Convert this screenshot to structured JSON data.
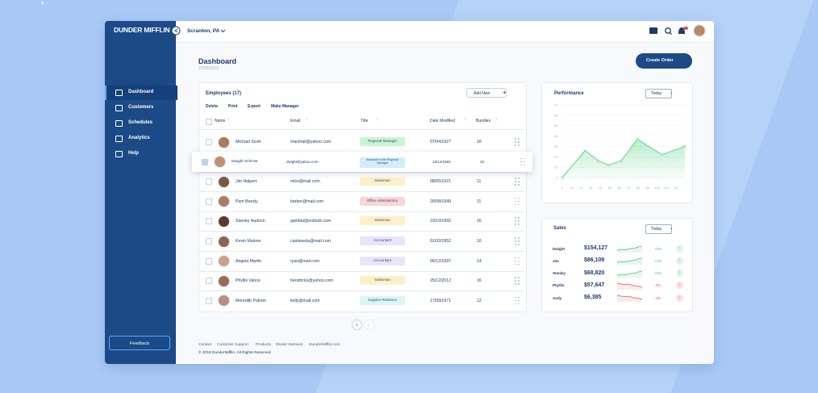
{
  "brand": "DUNDER MIFFLIN",
  "location": "Scranton, PA",
  "nav": [
    "Dashboard",
    "Customers",
    "Schedules",
    "Analytics",
    "Help"
  ],
  "active_nav": 0,
  "feedback": "Feedback",
  "page": {
    "title": "Dashboard",
    "date": "22/05/2019",
    "create_button": "Create Order"
  },
  "employees": {
    "title": "Employees (17)",
    "add_button": "Add New",
    "actions": [
      "Delete",
      "Print",
      "Export",
      "Make Manager"
    ],
    "columns": [
      "Name",
      "Email",
      "Title",
      "Date Modified",
      "Bundles"
    ],
    "rows": [
      {
        "name": "Michael Scott",
        "email": "marshall@yahoo.com",
        "title": "Regional Manager",
        "date": "07/04/1927",
        "bundles": 16,
        "tag_color": "#c9f5d3"
      },
      {
        "name": "Dwight Schrute",
        "email": "dwight@yahoo.com",
        "title": "Assistant to the Regional Manager",
        "date": "19/12/1983",
        "bundles": 15,
        "tag_color": "#d3ecfb",
        "selected": true
      },
      {
        "name": "Jim Halpert",
        "email": "mlss@mail.com",
        "title": "Salesman",
        "date": "08/05/1921",
        "bundles": 11,
        "tag_color": "#fdefc8"
      },
      {
        "name": "Pam Beesly",
        "email": "barber@mail.com",
        "title": "Office Administrator",
        "date": "26/08/1949",
        "bundles": 11,
        "tag_color": "#fbd5d5"
      },
      {
        "name": "Stanley Hudson",
        "email": "gambia@outlook.com",
        "title": "Salesman",
        "date": "19/10/1992",
        "bundles": 16,
        "tag_color": "#fdefc8"
      },
      {
        "name": "Kevin Malone",
        "email": "castaneda@mail.com",
        "title": "Accountant",
        "date": "01/02/1952",
        "bundles": 16,
        "tag_color": "#ebe3fa"
      },
      {
        "name": "Angela Martin",
        "email": "ryan@mail.com",
        "title": "Accountant",
        "date": "06/12/1997",
        "bundles": 14,
        "tag_color": "#ebe3fa"
      },
      {
        "name": "Phyllis Vance",
        "email": "hendricks@yahoo.com",
        "title": "Salesman",
        "date": "25/12/2012",
        "bundles": 16,
        "tag_color": "#fdefc8"
      },
      {
        "name": "Meredith Palmer",
        "email": "kelly@mail.com",
        "title": "Supplier Relations",
        "date": "17/09/1971",
        "bundles": 12,
        "tag_color": "#dcf6f8"
      }
    ],
    "pages": [
      "1",
      "2"
    ]
  },
  "footer": {
    "links": [
      "Contact",
      "Customer Support",
      "Products",
      "Dealer Extranet",
      "DunderMifflin.com"
    ],
    "copyright": "© 2019 DunderMifflin. All Rights Reserved"
  },
  "performance": {
    "title": "Performance",
    "filter": "Today",
    "chart": {
      "type": "area",
      "x": [
        0,
        24,
        38,
        49,
        62,
        79,
        105,
        129
      ],
      "values": [
        0,
        26,
        16,
        12,
        16,
        37,
        22,
        30
      ],
      "xlim": [
        0,
        130
      ],
      "ylim": [
        0,
        70
      ],
      "xticks": [
        0,
        10,
        20,
        30,
        40,
        50,
        60,
        70,
        80,
        90,
        100,
        110,
        120
      ],
      "yticks": [
        0,
        10,
        20,
        30,
        40,
        50,
        60,
        70
      ],
      "color": "#5fd68a",
      "grid": true
    }
  },
  "sales": {
    "title": "Sales",
    "filter": "Today",
    "rows": [
      {
        "name": "Dwight",
        "amount": "$154,127",
        "change": "+2%",
        "trend": "up"
      },
      {
        "name": "Jim",
        "amount": "$86,109",
        "change": "+1%",
        "trend": "up"
      },
      {
        "name": "Stanley",
        "amount": "$68,820",
        "change": "+2%",
        "trend": "up"
      },
      {
        "name": "Phyllis",
        "amount": "$57,647",
        "change": "-4%",
        "trend": "down"
      },
      {
        "name": "Andy",
        "amount": "$6,385",
        "change": "-4%",
        "trend": "down"
      }
    ]
  }
}
